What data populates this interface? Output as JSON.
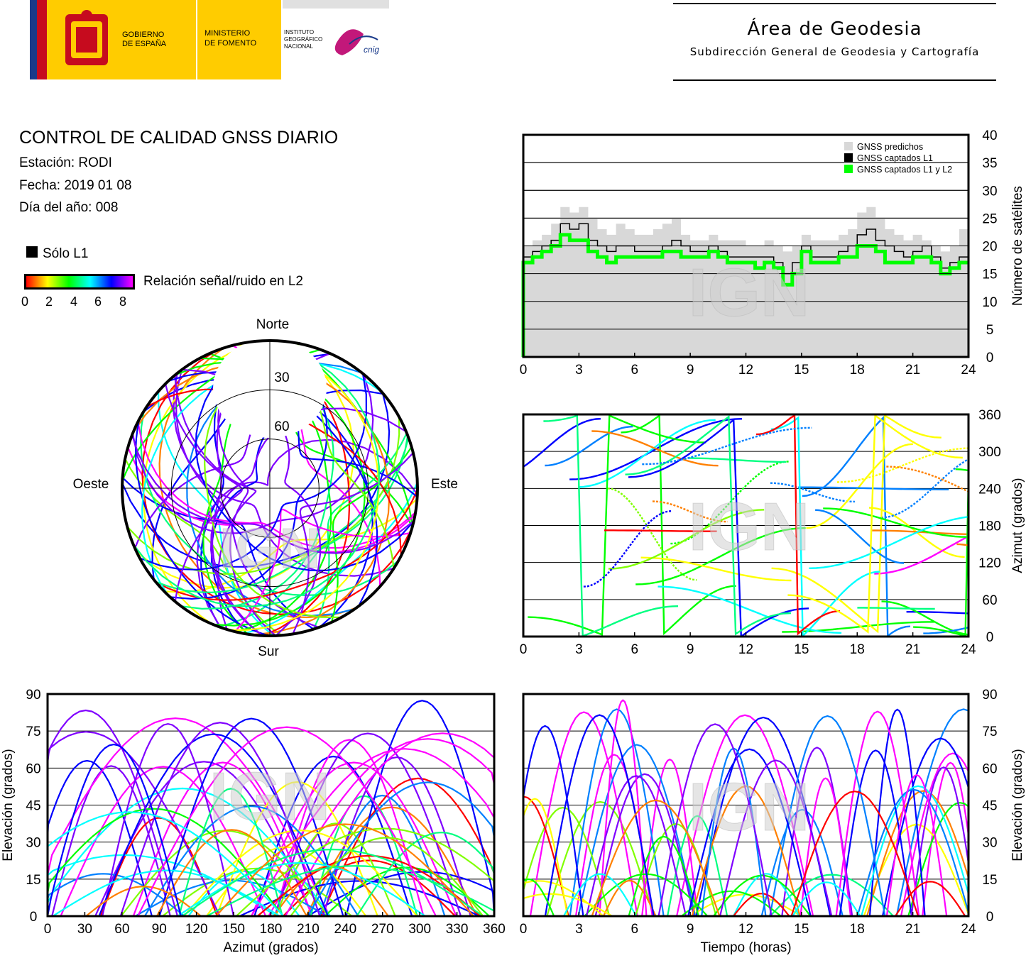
{
  "header": {
    "gov_name": "GOBIERNO\nDE ESPAÑA",
    "ministry": "MINISTERIO\nDE FOMENTO",
    "institute": "INSTITUTO\nGEOGRÁFICO\nNACIONAL",
    "cnig": "cnig",
    "area_title": "Área de Geodesia",
    "area_subtitle": "Subdirección General de Geodesia y Cartografía"
  },
  "report": {
    "title": "CONTROL DE CALIDAD GNSS DIARIO",
    "station": "Estación: RODI",
    "date": "Fecha: 2019 01 08",
    "doy": "Día del año: 008",
    "legend_l1": "Sólo L1",
    "colorbar_label": "Relación señal/ruido en L2",
    "colorbar_ticks": [
      "0",
      "2",
      "4",
      "6",
      "8"
    ]
  },
  "watermark": "IGN",
  "colors": {
    "predicted": "#d8d8d8",
    "l1": "#000000",
    "l1l2": "#00ff00",
    "snr_scale": [
      "#ff0000",
      "#ff8000",
      "#ffff00",
      "#80ff00",
      "#00ff00",
      "#00ff80",
      "#00ffff",
      "#0080ff",
      "#0000ff",
      "#8000ff",
      "#ff00ff"
    ]
  },
  "chart_data": [
    {
      "type": "area",
      "title": "",
      "xlabel": "",
      "ylabel": "Número de satélites",
      "xlim": [
        0,
        24
      ],
      "ylim": [
        0,
        40
      ],
      "xticks": [
        "0",
        "3",
        "6",
        "9",
        "12",
        "15",
        "18",
        "21",
        "24"
      ],
      "yticks": [
        "0",
        "5",
        "10",
        "15",
        "20",
        "25",
        "30",
        "35",
        "40"
      ],
      "grid": true,
      "legend_position": "top-right",
      "x": [
        0,
        0.5,
        1,
        1.5,
        2,
        2.5,
        3,
        3.5,
        4,
        4.5,
        5,
        5.5,
        6,
        6.5,
        7,
        7.5,
        8,
        8.5,
        9,
        9.5,
        10,
        10.5,
        11,
        11.5,
        12,
        12.5,
        13,
        13.5,
        14,
        14.5,
        15,
        15.5,
        16,
        16.5,
        17,
        17.5,
        18,
        18.5,
        19,
        19.5,
        20,
        20.5,
        21,
        21.5,
        22,
        22.5,
        23,
        23.5,
        24
      ],
      "series": [
        {
          "name": "GNSS predichos",
          "values": [
            20,
            21,
            22,
            24,
            27,
            26,
            27,
            25,
            23,
            22,
            24,
            23,
            22,
            22,
            23,
            24,
            25,
            22,
            21,
            21,
            22,
            21,
            21,
            21,
            20,
            20,
            21,
            20,
            19,
            20,
            22,
            21,
            21,
            21,
            22,
            23,
            26,
            27,
            25,
            23,
            22,
            21,
            22,
            21,
            20,
            19,
            20,
            23,
            21
          ]
        },
        {
          "name": "GNSS captados L1",
          "values": [
            18,
            19,
            20,
            21,
            24,
            23,
            24,
            21,
            20,
            19,
            20,
            20,
            19,
            19,
            19,
            20,
            21,
            20,
            19,
            19,
            20,
            19,
            18,
            18,
            18,
            18,
            18,
            17,
            15,
            17,
            20,
            18,
            18,
            18,
            19,
            20,
            22,
            23,
            21,
            20,
            19,
            18,
            19,
            20,
            18,
            16,
            17,
            18,
            18
          ]
        },
        {
          "name": "GNSS captados L1 y L2",
          "values": [
            17,
            18,
            19,
            20,
            22,
            21,
            21,
            19,
            18,
            17,
            18,
            18,
            18,
            18,
            18,
            19,
            19,
            18,
            18,
            18,
            19,
            18,
            17,
            17,
            17,
            16,
            17,
            16,
            13,
            15,
            19,
            17,
            17,
            17,
            18,
            18,
            20,
            20,
            19,
            17,
            17,
            17,
            18,
            18,
            17,
            15,
            16,
            17,
            17
          ]
        }
      ]
    },
    {
      "type": "scatter",
      "title": "",
      "xlabel": "",
      "ylabel": "Azimut (grados)",
      "xlim": [
        0,
        24
      ],
      "ylim": [
        0,
        360
      ],
      "xticks": [
        "0",
        "3",
        "6",
        "9",
        "12",
        "15",
        "18",
        "21",
        "24"
      ],
      "yticks": [
        "0",
        "60",
        "120",
        "180",
        "240",
        "300",
        "360"
      ],
      "grid": true,
      "color_encodes": "Relación señal/ruido en L2"
    },
    {
      "type": "scatter",
      "title": "",
      "xlabel": "Azimut (grados)",
      "ylabel": "Elevación (grados)",
      "xlim": [
        0,
        360
      ],
      "ylim": [
        0,
        90
      ],
      "xticks": [
        "0",
        "30",
        "60",
        "90",
        "120",
        "150",
        "180",
        "210",
        "240",
        "270",
        "300",
        "330",
        "360"
      ],
      "yticks": [
        "0",
        "15",
        "30",
        "45",
        "60",
        "75",
        "90"
      ],
      "grid": true,
      "color_encodes": "Relación señal/ruido en L2"
    },
    {
      "type": "scatter",
      "title": "",
      "xlabel": "Tiempo (horas)",
      "ylabel": "Elevación (grados)",
      "xlim": [
        0,
        24
      ],
      "ylim": [
        0,
        90
      ],
      "xticks": [
        "0",
        "3",
        "6",
        "9",
        "12",
        "15",
        "18",
        "21",
        "24"
      ],
      "yticks": [
        "0",
        "15",
        "30",
        "45",
        "60",
        "75",
        "90"
      ],
      "grid": true,
      "color_encodes": "Relación señal/ruido en L2"
    },
    {
      "type": "scatter",
      "title": "",
      "polar": true,
      "directions": {
        "north": "Norte",
        "south": "Sur",
        "east": "Este",
        "west": "Oeste"
      },
      "ring_labels": [
        "30",
        "60"
      ],
      "color_encodes": "Relación señal/ruido en L2"
    }
  ]
}
